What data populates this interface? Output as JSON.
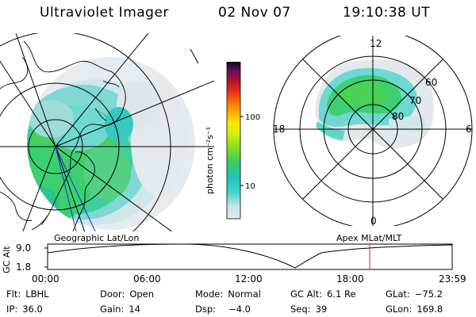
{
  "header": {
    "instrument": "Ultraviolet Imager",
    "date": "02 Nov 07",
    "time": "19:10:38 UT"
  },
  "colorbar": {
    "unit_label": "photon cm⁻²s⁻¹",
    "ticks": [
      "100",
      "10"
    ],
    "colors": [
      "#d8dde3",
      "#6fd4d4",
      "#20c8c0",
      "#2ed06a",
      "#78e020",
      "#c6ee12",
      "#ffe600",
      "#ffb300",
      "#ff7a00",
      "#e3261b",
      "#b8142e",
      "#8a1253",
      "#3a0d5a",
      "#0a0a2a"
    ]
  },
  "left_panel": {
    "caption": "Geographic Lat/Lon"
  },
  "right_panel": {
    "caption": "Apex MLat/MLT",
    "mlt_labels": {
      "top": "12",
      "bottom": "0",
      "left": "18",
      "right": "6"
    },
    "lat_labels": [
      "60",
      "70",
      "80"
    ]
  },
  "alt_plot": {
    "ylabel": "GC Alt",
    "yticks": [
      "9.0",
      "1.8"
    ],
    "xticks": [
      "00:00",
      "06:00",
      "12:00",
      "18:00",
      "23:59"
    ],
    "marker_color": "#d42020"
  },
  "info": {
    "filter": {
      "label": "Flt:",
      "value": "LBHL"
    },
    "door": {
      "label": "Door:",
      "value": "Open"
    },
    "mode": {
      "label": "Mode:",
      "value": "Normal"
    },
    "gc_alt": {
      "label": "GC Alt:",
      "value": "6.1 Re"
    },
    "glat": {
      "label": "GLat:",
      "value": "−75.2"
    },
    "ip": {
      "label": "IP:",
      "value": "36.0"
    },
    "gain": {
      "label": "Gain:",
      "value": "14"
    },
    "dsp": {
      "label": "Dsp:",
      "value": "−4.0"
    },
    "seq": {
      "label": "Seq:",
      "value": "39"
    },
    "glon": {
      "label": "GLon:",
      "value": "169.8"
    }
  }
}
